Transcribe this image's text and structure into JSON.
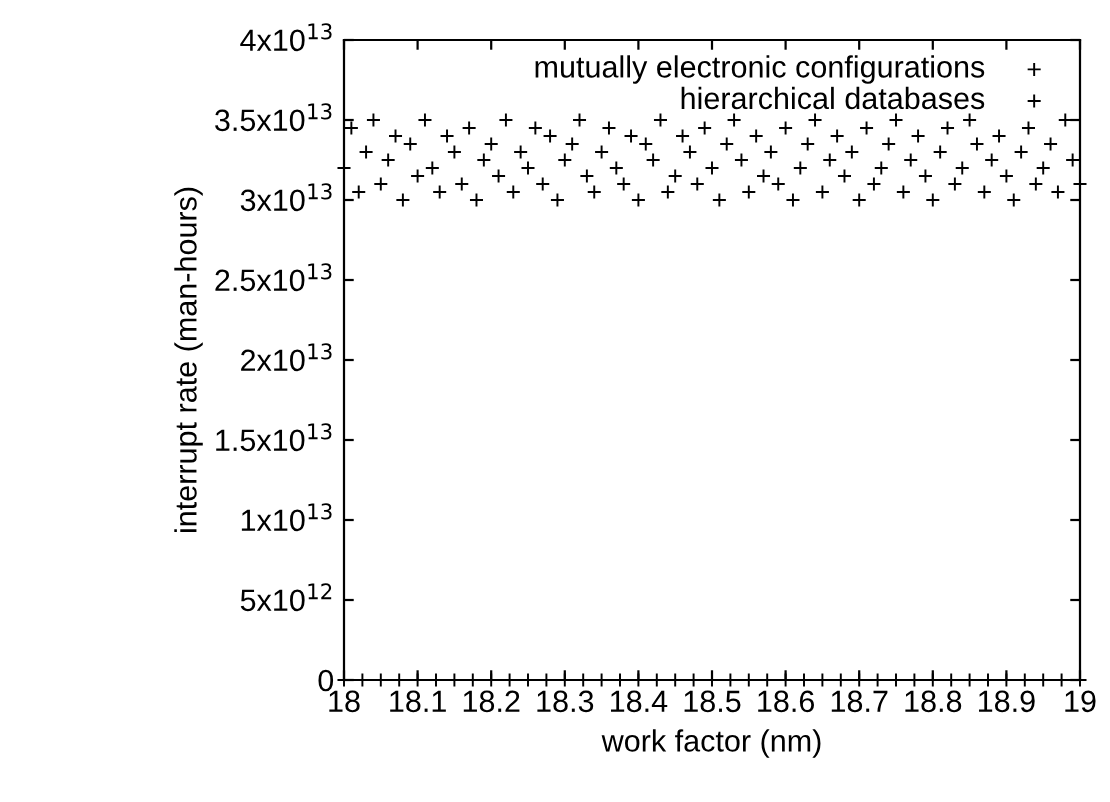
{
  "chart_data": {
    "type": "scatter",
    "xlabel": "work factor (nm)",
    "ylabel": "interrupt rate (man-hours)",
    "xlim": [
      18,
      19
    ],
    "xticks": [
      18,
      18.1,
      18.2,
      18.3,
      18.4,
      18.5,
      18.6,
      18.7,
      18.8,
      18.9,
      19
    ],
    "ylim": [
      0,
      40000000000000.0
    ],
    "yticks": [
      {
        "value": 0,
        "label": "0"
      },
      {
        "value": 5000000000000.0,
        "label": "5x10$^{12}$"
      },
      {
        "value": 10000000000000.0,
        "label": "1x10$^{13}$"
      },
      {
        "value": 15000000000000.0,
        "label": "1.5x10$^{13}$"
      },
      {
        "value": 20000000000000.0,
        "label": "2x10$^{13}$"
      },
      {
        "value": 25000000000000.0,
        "label": "2.5x10$^{13}$"
      },
      {
        "value": 30000000000000.0,
        "label": "3x10$^{13}$"
      },
      {
        "value": 35000000000000.0,
        "label": "3.5x10$^{13}$"
      },
      {
        "value": 40000000000000.0,
        "label": "4x10$^{13}$"
      }
    ],
    "grid": false,
    "legend": "top right",
    "marker": "cross",
    "series": [
      {
        "name": "mutually electronic configurations",
        "color": "#000000",
        "x": [
          18.0,
          18.01,
          18.02,
          18.03,
          18.04,
          18.05,
          18.06,
          18.07,
          18.08,
          18.09,
          18.1,
          18.11,
          18.12,
          18.13,
          18.14,
          18.15,
          18.16,
          18.17,
          18.18,
          18.19,
          18.2,
          18.21,
          18.22,
          18.23,
          18.24,
          18.25,
          18.26,
          18.27,
          18.28,
          18.29,
          18.3,
          18.31,
          18.32,
          18.33,
          18.34,
          18.35,
          18.36,
          18.37,
          18.38,
          18.39,
          18.4,
          18.41,
          18.42,
          18.43,
          18.44,
          18.45,
          18.46,
          18.47,
          18.48,
          18.49,
          18.5,
          18.51,
          18.52,
          18.53,
          18.54,
          18.55,
          18.56,
          18.57,
          18.58,
          18.59,
          18.6,
          18.61,
          18.62,
          18.63,
          18.64,
          18.65,
          18.66,
          18.67,
          18.68,
          18.69,
          18.7,
          18.71,
          18.72,
          18.73,
          18.74,
          18.75,
          18.76,
          18.77,
          18.78,
          18.79,
          18.8,
          18.81,
          18.82,
          18.83,
          18.84,
          18.85,
          18.86,
          18.87,
          18.88,
          18.89,
          18.9,
          18.91,
          18.92,
          18.93,
          18.94,
          18.95,
          18.96,
          18.97,
          18.98,
          18.99,
          19.0
        ],
        "values": [
          32000000000000.0,
          34500000000000.0,
          30500000000000.0,
          33000000000000.0,
          35000000000000.0,
          31000000000000.0,
          32500000000000.0,
          34000000000000.0,
          30000000000000.0,
          33500000000000.0,
          31500000000000.0,
          35000000000000.0,
          32000000000000.0,
          30500000000000.0,
          34000000000000.0,
          33000000000000.0,
          31000000000000.0,
          34500000000000.0,
          30000000000000.0,
          32500000000000.0,
          33500000000000.0,
          31500000000000.0,
          35000000000000.0,
          30500000000000.0,
          33000000000000.0,
          32000000000000.0,
          34500000000000.0,
          31000000000000.0,
          34000000000000.0,
          30000000000000.0,
          32500000000000.0,
          33500000000000.0,
          35000000000000.0,
          31500000000000.0,
          30500000000000.0,
          33000000000000.0,
          34500000000000.0,
          32000000000000.0,
          31000000000000.0,
          34000000000000.0,
          30000000000000.0,
          33500000000000.0,
          32500000000000.0,
          35000000000000.0,
          30500000000000.0,
          31500000000000.0,
          34000000000000.0,
          33000000000000.0,
          31000000000000.0,
          34500000000000.0,
          32000000000000.0,
          30000000000000.0,
          33500000000000.0,
          35000000000000.0,
          32500000000000.0,
          30500000000000.0,
          34000000000000.0,
          31500000000000.0,
          33000000000000.0,
          31000000000000.0,
          34500000000000.0,
          30000000000000.0,
          32000000000000.0,
          33500000000000.0,
          35000000000000.0,
          30500000000000.0,
          32500000000000.0,
          34000000000000.0,
          31500000000000.0,
          33000000000000.0,
          30000000000000.0,
          34500000000000.0,
          31000000000000.0,
          32000000000000.0,
          33500000000000.0,
          35000000000000.0,
          30500000000000.0,
          32500000000000.0,
          34000000000000.0,
          31500000000000.0,
          30000000000000.0,
          33000000000000.0,
          34500000000000.0,
          31000000000000.0,
          32000000000000.0,
          35000000000000.0,
          33500000000000.0,
          30500000000000.0,
          32500000000000.0,
          34000000000000.0,
          31500000000000.0,
          30000000000000.0,
          33000000000000.0,
          34500000000000.0,
          31000000000000.0,
          32000000000000.0,
          33500000000000.0,
          30500000000000.0,
          35000000000000.0,
          32500000000000.0,
          31000000000000.0
        ]
      },
      {
        "name": "hierarchical databases",
        "color": "#000000",
        "x": [
          18.0,
          18.025,
          18.05,
          18.075,
          18.1,
          18.125,
          18.15,
          18.175,
          18.2,
          18.225,
          18.25,
          18.275,
          18.3,
          18.325,
          18.35,
          18.375,
          18.4,
          18.425,
          18.45,
          18.475,
          18.5,
          18.525,
          18.55,
          18.575,
          18.6,
          18.625,
          18.65,
          18.675,
          18.7,
          18.725,
          18.75,
          18.775,
          18.8,
          18.825,
          18.85,
          18.875,
          18.9,
          18.925,
          18.95,
          18.975,
          19.0
        ],
        "values": [
          0,
          0,
          0,
          0,
          0,
          0,
          0,
          0,
          0,
          0,
          0,
          0,
          0,
          0,
          0,
          0,
          0,
          0,
          0,
          0,
          0,
          0,
          0,
          0,
          0,
          0,
          0,
          0,
          0,
          0,
          0,
          0,
          0,
          0,
          0,
          0,
          0,
          0,
          0,
          0,
          0
        ]
      }
    ]
  }
}
